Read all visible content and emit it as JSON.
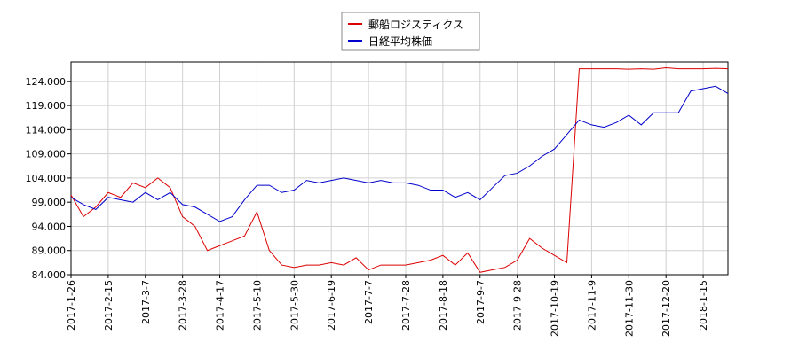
{
  "chart_data": {
    "type": "line",
    "categories": [
      "2017-1-26",
      null,
      null,
      "2017-2-15",
      null,
      null,
      "2017-3-7",
      null,
      null,
      "2017-3-28",
      null,
      null,
      "2017-4-17",
      null,
      null,
      "2017-5-10",
      null,
      null,
      "2017-5-30",
      null,
      null,
      "2017-6-19",
      null,
      null,
      "2017-7-7",
      null,
      null,
      "2017-7-28",
      null,
      null,
      "2017-8-18",
      null,
      null,
      "2017-9-7",
      null,
      null,
      "2017-9-28",
      null,
      null,
      "2017-10-19",
      null,
      null,
      "2017-11-9",
      null,
      null,
      "2017-11-30",
      null,
      null,
      "2017-12-20",
      null,
      null,
      "2018-1-15",
      null,
      null
    ],
    "series": [
      {
        "name": "郵船ロジスティクス",
        "color": "#dd0000",
        "values": [
          100.5,
          96,
          98,
          101,
          100,
          103,
          102,
          104,
          102,
          96,
          94,
          89,
          90,
          91,
          92,
          97,
          89,
          86,
          85.5,
          86,
          86,
          86.5,
          86,
          87.5,
          85,
          86,
          86,
          86,
          86.5,
          87,
          88,
          86,
          88.5,
          84.5,
          85,
          85.5,
          87,
          91.5,
          89.5,
          88,
          86.5,
          126.6,
          126.6,
          126.6,
          126.6,
          126.5,
          126.6,
          126.5,
          126.8,
          126.6,
          126.6,
          126.6,
          126.7,
          126.6
        ]
      },
      {
        "name": "日経平均株価",
        "color": "#0000cc",
        "values": [
          100,
          98.5,
          97.5,
          100,
          99.5,
          99,
          101,
          99.5,
          101,
          98.5,
          98,
          96.5,
          95,
          96,
          99.5,
          102.5,
          102.5,
          101,
          101.5,
          103.5,
          103,
          103.5,
          104,
          103.5,
          103,
          103.5,
          103,
          103,
          102.5,
          101.5,
          101.5,
          100,
          101,
          99.5,
          102,
          104.5,
          105,
          106.5,
          108.5,
          110,
          113,
          116,
          115,
          114.5,
          115.5,
          117,
          115,
          117.5,
          117.5,
          117.5,
          122,
          122.5,
          123,
          121.5
        ]
      }
    ],
    "ylim": [
      84,
      128
    ],
    "yticks": [
      {
        "value": 84,
        "label": "84.000"
      },
      {
        "value": 89,
        "label": "89.000"
      },
      {
        "value": 94,
        "label": "94.000"
      },
      {
        "value": 99,
        "label": "99.000"
      },
      {
        "value": 104,
        "label": "104.000"
      },
      {
        "value": 109,
        "label": "109.000"
      },
      {
        "value": 114,
        "label": "114.000"
      },
      {
        "value": 119,
        "label": "119.000"
      },
      {
        "value": 124,
        "label": "124.000"
      }
    ],
    "grid": true
  }
}
